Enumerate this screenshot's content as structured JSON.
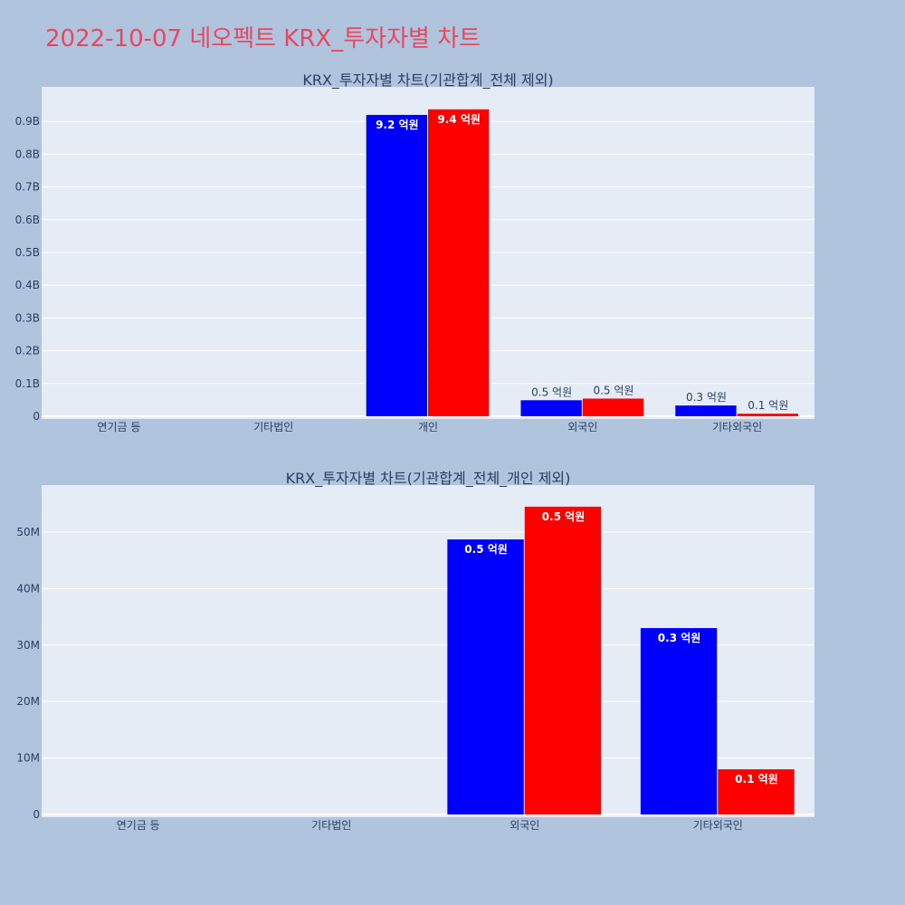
{
  "page": {
    "title": "2022-10-07 네오펙트 KRX_투자자별 차트",
    "background": "#b0c4de",
    "title_color": "#e8485f"
  },
  "colors": {
    "plot_bg": "#e5ecf6",
    "series_a": "#0000ff",
    "series_b": "#ff0000"
  },
  "chart_data": [
    {
      "type": "bar",
      "title": "KRX_투자자별 차트(기관합계_전체 제외)",
      "categories": [
        "연기금 등",
        "기타법인",
        "개인",
        "외국인",
        "기타외국인"
      ],
      "series": [
        {
          "values": [
            0,
            0,
            920000000,
            49000000,
            33000000
          ],
          "labels": [
            "",
            "",
            "9.2 억원",
            "0.5 억원",
            "0.3 억원"
          ],
          "color": "#0000ff"
        },
        {
          "values": [
            0,
            0,
            937000000,
            54000000,
            8000000
          ],
          "labels": [
            "",
            "",
            "9.4 억원",
            "0.5 억원",
            "0.1 억원"
          ],
          "color": "#ff0000"
        }
      ],
      "ylim": [
        0,
        1000000000
      ],
      "yticks": [
        0,
        100000000,
        200000000,
        300000000,
        400000000,
        500000000,
        600000000,
        700000000,
        800000000,
        900000000
      ],
      "yticklabels": [
        "0",
        "0.1B",
        "0.2B",
        "0.3B",
        "0.4B",
        "0.5B",
        "0.6B",
        "0.7B",
        "0.8B",
        "0.9B"
      ],
      "grid": true
    },
    {
      "type": "bar",
      "title": "KRX_투자자별 차트(기관합계_전체_개인 제외)",
      "categories": [
        "연기금 등",
        "기타법인",
        "외국인",
        "기타외국인"
      ],
      "series": [
        {
          "values": [
            0,
            0,
            48700000,
            33000000
          ],
          "labels": [
            "",
            "",
            "0.5 억원",
            "0.3 억원"
          ],
          "color": "#0000ff"
        },
        {
          "values": [
            0,
            0,
            54500000,
            8000000
          ],
          "labels": [
            "",
            "",
            "0.5 억원",
            "0.1 억원"
          ],
          "color": "#ff0000"
        }
      ],
      "ylim": [
        0,
        58000000
      ],
      "yticks": [
        0,
        10000000,
        20000000,
        30000000,
        40000000,
        50000000
      ],
      "yticklabels": [
        "0",
        "10M",
        "20M",
        "30M",
        "40M",
        "50M"
      ],
      "grid": true
    }
  ]
}
